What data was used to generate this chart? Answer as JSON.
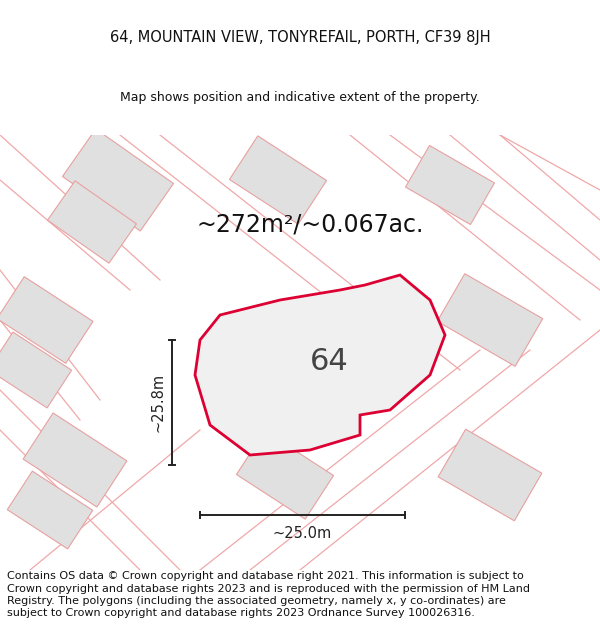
{
  "title_line1": "64, MOUNTAIN VIEW, TONYREFAIL, PORTH, CF39 8JH",
  "title_line2": "Map shows position and indicative extent of the property.",
  "area_text": "~272m²/~0.067ac.",
  "label_64": "64",
  "dim_vertical": "~25.8m",
  "dim_horizontal": "~25.0m",
  "footer_text": "Contains OS data © Crown copyright and database right 2021. This information is subject to Crown copyright and database rights 2023 and is reproduced with the permission of HM Land Registry. The polygons (including the associated geometry, namely x, y co-ordinates) are subject to Crown copyright and database rights 2023 Ordnance Survey 100026316.",
  "bg_color": "#ffffff",
  "map_bg": "#ffffff",
  "plot_fill": "#f0f0f0",
  "plot_edge_color": "#dd0033",
  "neighbor_fill": "#e0e0e0",
  "neighbor_edge_light": "#e8a0a0",
  "road_line_color": "#f0a8a8",
  "dim_line_color": "#222222",
  "title_color": "#111111",
  "footer_color": "#111111",
  "area_text_color": "#111111",
  "label_color": "#444444",
  "footer_fontsize": 8.0,
  "title_fontsize1": 10.5,
  "title_fontsize2": 9.0,
  "area_fontsize": 17,
  "label_fontsize": 22,
  "dim_fontsize": 10.5
}
